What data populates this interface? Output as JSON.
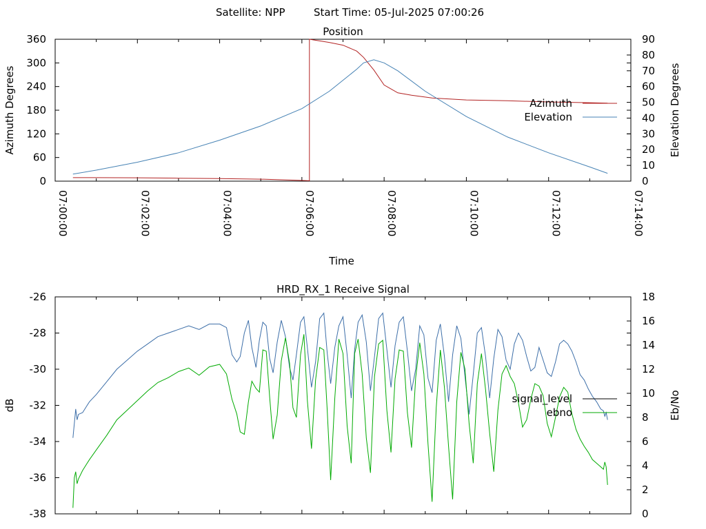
{
  "page": {
    "header_satellite": "Satellite: NPP",
    "header_start": "Start Time: 05-Jul-2025 07:00:26"
  },
  "chart_data": [
    {
      "type": "line",
      "title": "Position",
      "xlabel": "Time",
      "ylabel": "Azimuth Degrees",
      "y2label": "Elevation Degrees",
      "x_ticks": [
        "07:00:00",
        "07:02:00",
        "07:04:00",
        "07:06:00",
        "07:08:00",
        "07:10:00",
        "07:12:00",
        "07:14:00"
      ],
      "xlim_seconds": [
        0,
        840
      ],
      "ylim": [
        0,
        360
      ],
      "y_ticks": [
        0,
        60,
        120,
        180,
        240,
        300,
        360
      ],
      "y2lim": [
        0,
        90
      ],
      "y2_ticks": [
        0,
        10,
        20,
        30,
        40,
        50,
        60,
        70,
        80,
        90
      ],
      "legend_position": "right",
      "grid": false,
      "series": [
        {
          "name": "Azimuth",
          "axis": "y",
          "color": "#b22222",
          "x": [
            26,
            60,
            120,
            180,
            240,
            300,
            350,
            371,
            371,
            400,
            420,
            440,
            450,
            465,
            480,
            500,
            520,
            550,
            600,
            660,
            720,
            780,
            806
          ],
          "y": [
            9,
            9,
            8.5,
            7.5,
            6.5,
            5,
            2.5,
            1,
            360,
            352,
            345,
            330,
            314,
            282,
            244,
            224,
            218,
            211,
            206,
            204,
            201,
            199,
            198
          ]
        },
        {
          "name": "Elevation",
          "axis": "y2",
          "color": "#4682b4",
          "x": [
            26,
            60,
            120,
            180,
            240,
            300,
            360,
            400,
            420,
            440,
            450,
            465,
            480,
            500,
            540,
            600,
            660,
            720,
            780,
            806
          ],
          "y": [
            4.5,
            7,
            12,
            18,
            26,
            35,
            46,
            57,
            64,
            71,
            75,
            77,
            75,
            70,
            57,
            41,
            28,
            18,
            9,
            5
          ]
        }
      ]
    },
    {
      "type": "line",
      "title": "HRD_RX_1 Receive Signal",
      "ylabel": "dB",
      "y2label": "Eb/No",
      "x_ticks": [
        "07:00:00",
        "07:02:00",
        "07:04:00",
        "07:06:00",
        "07:08:00",
        "07:10:00",
        "07:12:00",
        "07:14:00"
      ],
      "x_tick_labels_shown": false,
      "xlim_seconds": [
        0,
        840
      ],
      "ylim": [
        -38,
        -26
      ],
      "y_ticks": [
        -38,
        -36,
        -34,
        -32,
        -30,
        -28,
        -26
      ],
      "y2lim": [
        0,
        18
      ],
      "y2_ticks": [
        0,
        2,
        4,
        6,
        8,
        10,
        12,
        14,
        16,
        18
      ],
      "legend_position": "right",
      "grid": false,
      "series": [
        {
          "name": "signal_level",
          "axis": "y",
          "color": "#3c6ea8",
          "x": [
            26,
            28,
            30,
            32,
            34,
            40,
            50,
            60,
            75,
            90,
            105,
            120,
            135,
            150,
            165,
            180,
            195,
            210,
            225,
            240,
            250,
            258,
            265,
            270,
            276,
            282,
            287,
            293,
            298,
            303,
            308,
            313,
            318,
            324,
            330,
            336,
            342,
            347,
            352,
            358,
            363,
            368,
            374,
            380,
            386,
            392,
            397,
            402,
            408,
            414,
            420,
            426,
            432,
            437,
            442,
            448,
            454,
            460,
            466,
            472,
            478,
            484,
            490,
            496,
            502,
            508,
            514,
            520,
            526,
            532,
            538,
            544,
            550,
            556,
            562,
            568,
            574,
            580,
            586,
            592,
            598,
            604,
            610,
            616,
            622,
            628,
            634,
            640,
            646,
            652,
            658,
            664,
            670,
            676,
            682,
            688,
            694,
            700,
            706,
            712,
            718,
            724,
            730,
            736,
            742,
            748,
            754,
            760,
            766,
            772,
            778,
            784,
            790,
            796,
            800,
            802,
            804,
            806
          ],
          "y": [
            -33.8,
            -33.0,
            -32.2,
            -32.8,
            -32.5,
            -32.4,
            -31.8,
            -31.4,
            -30.7,
            -30.0,
            -29.5,
            -29.0,
            -28.6,
            -28.2,
            -28.0,
            -27.8,
            -27.6,
            -27.8,
            -27.5,
            -27.5,
            -27.7,
            -29.2,
            -29.6,
            -29.3,
            -28.0,
            -27.3,
            -28.8,
            -29.9,
            -28.4,
            -27.4,
            -27.6,
            -29.4,
            -30.2,
            -28.5,
            -27.3,
            -28.2,
            -29.9,
            -30.6,
            -29.2,
            -27.4,
            -27.1,
            -28.8,
            -31.0,
            -29.6,
            -27.2,
            -26.9,
            -29.1,
            -30.8,
            -28.8,
            -27.6,
            -27.1,
            -29.2,
            -31.6,
            -28.9,
            -27.4,
            -27.0,
            -28.5,
            -31.2,
            -29.3,
            -27.2,
            -26.9,
            -28.9,
            -31.0,
            -28.7,
            -27.4,
            -27.1,
            -29.0,
            -31.2,
            -30.0,
            -27.6,
            -28.1,
            -30.5,
            -31.3,
            -28.4,
            -27.5,
            -29.3,
            -31.8,
            -29.2,
            -27.6,
            -28.3,
            -30.4,
            -32.5,
            -30.3,
            -28.0,
            -27.7,
            -29.3,
            -31.6,
            -29.4,
            -27.8,
            -28.2,
            -29.5,
            -30.0,
            -28.6,
            -28.0,
            -28.4,
            -29.3,
            -30.1,
            -29.9,
            -28.8,
            -29.5,
            -30.2,
            -30.4,
            -29.6,
            -28.6,
            -28.4,
            -28.6,
            -29.0,
            -29.6,
            -30.3,
            -30.6,
            -31.1,
            -31.5,
            -31.8,
            -32.2,
            -32.3,
            -32.6,
            -32.4,
            -32.8
          ]
        },
        {
          "name": "ebno",
          "axis": "y2",
          "color": "#00aa00",
          "x": [
            26,
            28,
            30,
            32,
            34,
            40,
            50,
            60,
            75,
            90,
            105,
            120,
            135,
            150,
            165,
            180,
            195,
            210,
            225,
            240,
            250,
            258,
            265,
            270,
            276,
            282,
            287,
            293,
            298,
            303,
            308,
            313,
            318,
            324,
            330,
            336,
            342,
            347,
            352,
            358,
            363,
            368,
            374,
            380,
            386,
            392,
            397,
            402,
            408,
            414,
            420,
            426,
            432,
            437,
            442,
            448,
            454,
            460,
            466,
            472,
            478,
            484,
            490,
            496,
            502,
            508,
            514,
            520,
            526,
            532,
            538,
            544,
            550,
            556,
            562,
            568,
            574,
            580,
            586,
            592,
            598,
            604,
            610,
            616,
            622,
            628,
            634,
            640,
            646,
            652,
            658,
            664,
            670,
            676,
            682,
            688,
            694,
            700,
            706,
            712,
            718,
            724,
            730,
            736,
            742,
            748,
            754,
            760,
            766,
            772,
            778,
            784,
            790,
            796,
            800,
            802,
            804,
            806
          ],
          "y": [
            0.5,
            3.0,
            3.5,
            2.5,
            2.9,
            3.6,
            4.5,
            5.3,
            6.5,
            7.8,
            8.6,
            9.4,
            10.2,
            10.9,
            11.3,
            11.8,
            12.1,
            11.5,
            12.2,
            12.4,
            11.6,
            9.5,
            8.3,
            6.8,
            6.6,
            9.3,
            11.0,
            10.4,
            10.1,
            13.6,
            13.5,
            9.7,
            6.2,
            8.2,
            12.7,
            14.6,
            12.5,
            8.8,
            8.0,
            13.2,
            14.9,
            9.4,
            5.4,
            11.1,
            13.8,
            13.6,
            8.6,
            2.8,
            9.6,
            14.5,
            13.3,
            7.3,
            4.2,
            13.3,
            14.5,
            11.6,
            6.3,
            3.4,
            11.4,
            14.1,
            14.4,
            8.6,
            5.1,
            11.2,
            13.6,
            13.5,
            8.4,
            5.5,
            11.3,
            14.2,
            11.6,
            5.8,
            1.0,
            8.8,
            13.6,
            10.5,
            5.6,
            1.2,
            9.3,
            13.4,
            12.0,
            7.5,
            4.2,
            10.8,
            13.3,
            10.3,
            6.7,
            3.5,
            8.6,
            11.6,
            12.3,
            11.4,
            10.8,
            9.2,
            7.2,
            7.8,
            9.5,
            10.8,
            10.6,
            9.8,
            7.5,
            6.4,
            8.0,
            9.7,
            10.5,
            10.1,
            8.3,
            7.0,
            6.2,
            5.6,
            5.1,
            4.5,
            4.2,
            3.9,
            3.7,
            4.3,
            3.9,
            2.4
          ]
        }
      ]
    }
  ]
}
